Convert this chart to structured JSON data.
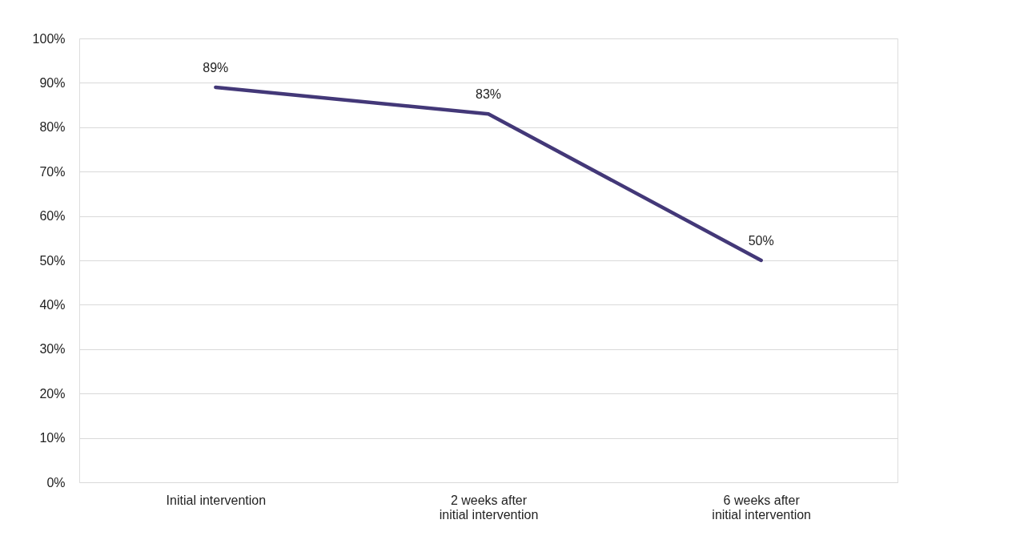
{
  "chart_data": {
    "type": "line",
    "categories": [
      "Initial intervention",
      "2 weeks after\ninitial intervention",
      "6 weeks after\ninitial intervention"
    ],
    "series": [
      {
        "color": "#433878",
        "values": [
          89,
          83,
          50
        ],
        "value_labels": [
          "89%",
          "83%",
          "50%"
        ]
      }
    ],
    "ylim": [
      0,
      100
    ],
    "yticks": [
      {
        "value": 0,
        "label": "0%"
      },
      {
        "value": 10,
        "label": "10%"
      },
      {
        "value": 20,
        "label": "20%"
      },
      {
        "value": 30,
        "label": "30%"
      },
      {
        "value": 40,
        "label": "40%"
      },
      {
        "value": 50,
        "label": "50%"
      },
      {
        "value": 60,
        "label": "60%"
      },
      {
        "value": 70,
        "label": "70%"
      },
      {
        "value": 80,
        "label": "80%"
      },
      {
        "value": 90,
        "label": "90%"
      },
      {
        "value": 100,
        "label": "100%"
      }
    ],
    "grid": "y",
    "marker": "none",
    "line_style": "solid"
  }
}
